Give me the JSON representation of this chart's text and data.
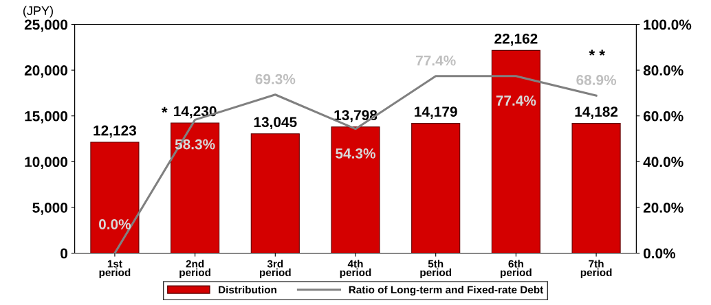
{
  "chart_data": {
    "type": "bar",
    "ylabel": "(JPY)",
    "categories": [
      "1st\nperiod",
      "2nd\nperiod",
      "3rd\nperiod",
      "4th\nperiod",
      "5th\nperiod",
      "6th\nperiod",
      "7th\nperiod"
    ],
    "series": [
      {
        "name": "Distribution",
        "color": "#d40000",
        "values": [
          12123,
          14230,
          13045,
          13798,
          14179,
          22162,
          14182
        ],
        "value_labels": [
          "12,123",
          "14,230",
          "13,045",
          "13,798",
          "14,179",
          "22,162",
          "14,182"
        ]
      },
      {
        "name": "Ratio of Long-term and Fixed-rate Debt",
        "type": "line",
        "axis": "y2",
        "color": "#808080",
        "values": [
          0.0,
          58.3,
          69.3,
          54.3,
          77.4,
          77.4,
          68.9
        ],
        "value_labels": [
          "0.0%",
          "58.3%",
          "69.3%",
          "54.3%",
          "77.4%",
          "77.4%",
          "68.9%"
        ]
      }
    ],
    "ylim": [
      0,
      25000
    ],
    "yticks": [
      {
        "value": 0,
        "label": "0"
      },
      {
        "value": 5000,
        "label": "5,000"
      },
      {
        "value": 10000,
        "label": "10,000"
      },
      {
        "value": 15000,
        "label": "15,000"
      },
      {
        "value": 20000,
        "label": "20,000"
      },
      {
        "value": 25000,
        "label": "25,000"
      }
    ],
    "y2lim": [
      0,
      100
    ],
    "y2ticks": [
      {
        "value": 0,
        "label": "0.0%"
      },
      {
        "value": 20,
        "label": "20.0%"
      },
      {
        "value": 40,
        "label": "40.0%"
      },
      {
        "value": 60,
        "label": "60.0%"
      },
      {
        "value": 80,
        "label": "80.0%"
      },
      {
        "value": 100,
        "label": "100.0%"
      }
    ],
    "annotations": [
      "*",
      "* *"
    ],
    "grid": false,
    "legend": "bottom",
    "marker": "none",
    "line_style": "solid"
  }
}
